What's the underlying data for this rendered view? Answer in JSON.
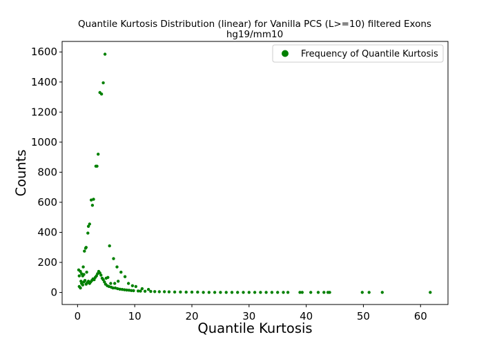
{
  "chart_data": {
    "type": "scatter",
    "title": "Quantile Kurtosis Distribution (linear) for Vanilla PCS (L>=10) filtered Exons",
    "subtitle": "hg19/mm10",
    "xlabel": "Quantile Kurtosis",
    "ylabel": "Counts",
    "xlim": [
      -2.7,
      64.8
    ],
    "ylim": [
      -80,
      1670
    ],
    "xticks": [
      0,
      10,
      20,
      30,
      40,
      50,
      60
    ],
    "yticks": [
      0,
      200,
      400,
      600,
      800,
      1000,
      1200,
      1400,
      1600
    ],
    "grid": false,
    "legend_position": "top-right",
    "colors": {
      "series": "#008000",
      "axes": "#000000",
      "legend_border": "#cccccc"
    },
    "series": [
      {
        "name": "Frequency of Quantile Kurtosis",
        "points": [
          [
            0.2,
            150
          ],
          [
            0.3,
            110
          ],
          [
            0.5,
            140
          ],
          [
            0.6,
            75
          ],
          [
            0.7,
            125
          ],
          [
            0.9,
            110
          ],
          [
            1.0,
            170
          ],
          [
            1.1,
            120
          ],
          [
            1.2,
            275
          ],
          [
            1.4,
            295
          ],
          [
            1.5,
            300
          ],
          [
            1.6,
            135
          ],
          [
            1.8,
            395
          ],
          [
            1.9,
            440
          ],
          [
            2.1,
            455
          ],
          [
            2.4,
            615
          ],
          [
            2.6,
            580
          ],
          [
            2.8,
            620
          ],
          [
            3.2,
            840
          ],
          [
            3.4,
            840
          ],
          [
            3.6,
            920
          ],
          [
            3.9,
            1330
          ],
          [
            4.2,
            1320
          ],
          [
            4.5,
            1395
          ],
          [
            4.8,
            1585
          ],
          [
            5.0,
            95
          ],
          [
            5.3,
            100
          ],
          [
            5.6,
            310
          ],
          [
            5.8,
            60
          ],
          [
            6.3,
            225
          ],
          [
            6.5,
            60
          ],
          [
            6.9,
            170
          ],
          [
            7.1,
            75
          ],
          [
            7.6,
            135
          ],
          [
            8.3,
            105
          ],
          [
            8.9,
            60
          ],
          [
            9.6,
            45
          ],
          [
            10.2,
            40
          ],
          [
            11.3,
            25
          ],
          [
            12.4,
            20
          ],
          [
            0.3,
            40
          ],
          [
            0.5,
            30
          ],
          [
            0.7,
            60
          ],
          [
            0.9,
            50
          ],
          [
            1.1,
            70
          ],
          [
            1.3,
            80
          ],
          [
            1.5,
            55
          ],
          [
            1.7,
            65
          ],
          [
            1.9,
            75
          ],
          [
            2.1,
            60
          ],
          [
            2.3,
            70
          ],
          [
            2.5,
            80
          ],
          [
            2.7,
            90
          ],
          [
            2.9,
            85
          ],
          [
            3.1,
            100
          ],
          [
            3.3,
            110
          ],
          [
            3.5,
            125
          ],
          [
            3.7,
            140
          ],
          [
            3.9,
            130
          ],
          [
            4.1,
            115
          ],
          [
            4.3,
            95
          ],
          [
            4.5,
            85
          ],
          [
            4.7,
            70
          ],
          [
            4.9,
            55
          ],
          [
            5.2,
            45
          ],
          [
            5.5,
            40
          ],
          [
            5.9,
            35
          ],
          [
            6.2,
            30
          ],
          [
            6.6,
            30
          ],
          [
            7.0,
            25
          ],
          [
            7.4,
            22
          ],
          [
            7.8,
            20
          ],
          [
            8.2,
            18
          ],
          [
            8.6,
            16
          ],
          [
            9.0,
            15
          ],
          [
            9.4,
            13
          ],
          [
            9.8,
            12
          ],
          [
            10.6,
            10
          ],
          [
            11.0,
            9
          ],
          [
            11.8,
            8
          ],
          [
            12.8,
            7
          ],
          [
            13.5,
            6
          ],
          [
            14.3,
            5
          ],
          [
            15.2,
            5
          ],
          [
            16.0,
            4
          ],
          [
            17.0,
            3
          ],
          [
            18.0,
            3
          ],
          [
            19.0,
            2
          ],
          [
            20.0,
            2
          ],
          [
            21.0,
            2
          ],
          [
            22.0,
            1
          ],
          [
            23.0,
            1
          ],
          [
            24.0,
            1
          ],
          [
            25.0,
            1
          ],
          [
            26.0,
            1
          ],
          [
            27.0,
            1
          ],
          [
            28.0,
            1
          ],
          [
            29.0,
            1
          ],
          [
            30.0,
            1
          ],
          [
            31.0,
            1
          ],
          [
            32.0,
            1
          ],
          [
            33.0,
            1
          ],
          [
            34.0,
            1
          ],
          [
            35.0,
            1
          ],
          [
            36.0,
            1
          ],
          [
            36.8,
            1
          ],
          [
            38.9,
            1
          ],
          [
            39.3,
            1
          ],
          [
            40.8,
            1
          ],
          [
            42.1,
            1
          ],
          [
            43.1,
            1
          ],
          [
            43.8,
            1
          ],
          [
            44.1,
            1
          ],
          [
            49.8,
            1
          ],
          [
            51.0,
            1
          ],
          [
            53.3,
            1
          ],
          [
            61.7,
            1
          ]
        ]
      }
    ]
  }
}
